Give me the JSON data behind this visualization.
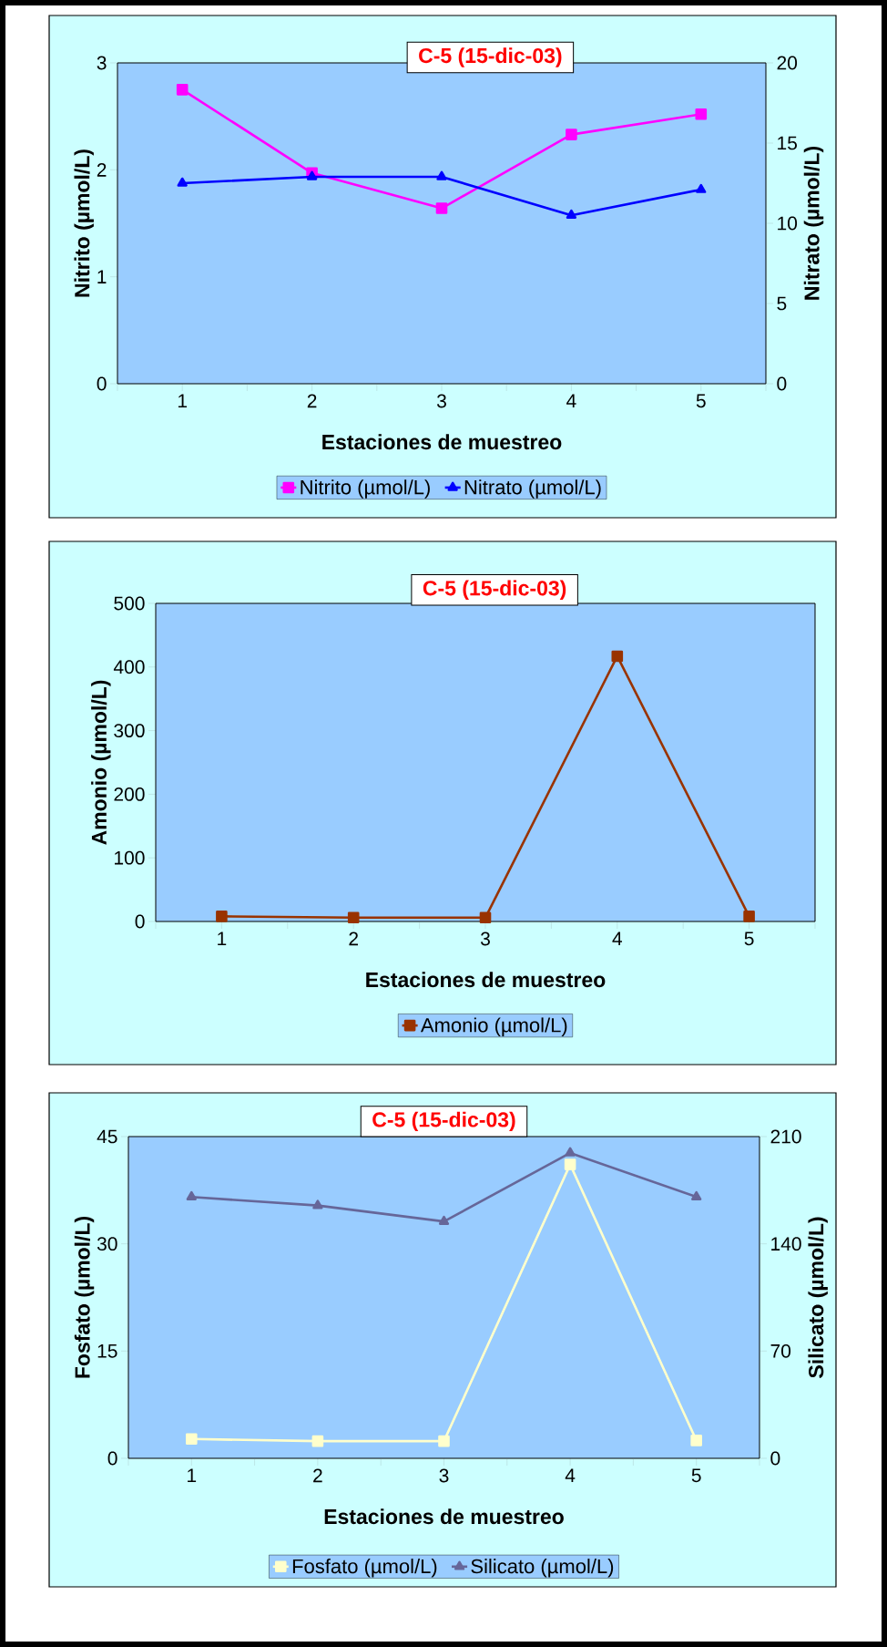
{
  "chart_data": [
    {
      "type": "line",
      "title": "C-5 (15-dic-03)",
      "xlabel": "Estaciones de muestreo",
      "ylabel": "Nitrito  (µmol/L)",
      "y2label": "Nitrato  (µmol/L)",
      "categories": [
        "1",
        "2",
        "3",
        "4",
        "5"
      ],
      "series": [
        {
          "name": "Nitrito (µmol/L)",
          "color": "#ff00ff",
          "marker": "square",
          "values": [
            2.75,
            1.97,
            1.64,
            2.33,
            2.52
          ]
        },
        {
          "name": "Nitrato (µmol/L)",
          "color": "#0000ff",
          "marker": "triangle",
          "axis": "y2",
          "values": [
            12.5,
            12.9,
            12.9,
            10.5,
            12.1
          ]
        }
      ],
      "ylim": [
        0,
        3
      ],
      "yticks": [
        0,
        1,
        2,
        3
      ],
      "y2lim": [
        0,
        20
      ],
      "y2ticks": [
        0,
        5,
        10,
        15,
        20
      ],
      "grid": false,
      "legend": "bottom"
    },
    {
      "type": "line",
      "title": "C-5 (15-dic-03)",
      "xlabel": "Estaciones de muestreo",
      "ylabel": "Amonio  (µmol/L)",
      "categories": [
        "1",
        "2",
        "3",
        "4",
        "5"
      ],
      "series": [
        {
          "name": "Amonio (µmol/L)",
          "color": "#993300",
          "marker": "square",
          "values": [
            8,
            6,
            6,
            417,
            8
          ]
        }
      ],
      "ylim": [
        0,
        500
      ],
      "yticks": [
        0,
        100,
        200,
        300,
        400,
        500
      ],
      "grid": false,
      "legend": "bottom"
    },
    {
      "type": "line",
      "title": "C-5 (15-dic-03)",
      "xlabel": "Estaciones de muestreo",
      "ylabel": "Fosfato  (µmol/L)",
      "y2label": "Silicato  (µmol/L)",
      "categories": [
        "1",
        "2",
        "3",
        "4",
        "5"
      ],
      "series": [
        {
          "name": "Fosfato (µmol/L)",
          "color": "#ffffcc",
          "marker": "square",
          "values": [
            2.7,
            2.4,
            2.4,
            41.1,
            2.5
          ]
        },
        {
          "name": "Silicato (µmol/L)",
          "color": "#666699",
          "marker": "triangle",
          "axis": "y2",
          "values": [
            170.6,
            165,
            154.6,
            199.3,
            170.6
          ]
        }
      ],
      "ylim": [
        0,
        45
      ],
      "yticks": [
        0,
        15,
        30,
        45
      ],
      "y2lim": [
        0,
        210
      ],
      "y2ticks": [
        0,
        70,
        140,
        210
      ],
      "grid": false,
      "legend": "bottom"
    }
  ]
}
